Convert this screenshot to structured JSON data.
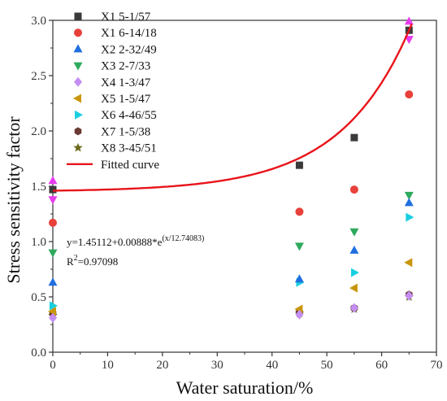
{
  "chart_data": {
    "type": "scatter",
    "xlabel": "Water saturation/%",
    "ylabel": "Stress sensitivity factor",
    "xlim": [
      0,
      70
    ],
    "ylim": [
      0.0,
      3.0
    ],
    "x_ticks": [
      "0",
      "10",
      "20",
      "30",
      "40",
      "50",
      "60",
      "70"
    ],
    "y_ticks": [
      "0.0",
      "0.5",
      "1.0",
      "1.5",
      "2.0",
      "2.5",
      "3.0"
    ],
    "legend_position": "top-left",
    "series": [
      {
        "name": "X1 5-1/57",
        "marker": "square",
        "color": "#3a3a3a",
        "x": [
          0,
          45,
          55,
          65
        ],
        "y": [
          1.47,
          1.69,
          1.94,
          2.91
        ]
      },
      {
        "name": "X1 6-14/18",
        "marker": "circle",
        "color": "#e8403a",
        "x": [
          0,
          45,
          55,
          65
        ],
        "y": [
          1.17,
          1.27,
          1.47,
          2.33
        ]
      },
      {
        "name": "X2 2-32/49",
        "marker": "triangle-up",
        "color": "#1f6fe0",
        "x": [
          0,
          45,
          55,
          65
        ],
        "y": [
          0.63,
          0.66,
          0.92,
          1.35
        ]
      },
      {
        "name": "X3 2-7/33",
        "marker": "triangle-down",
        "color": "#2faa5e",
        "x": [
          0,
          45,
          55,
          65
        ],
        "y": [
          0.9,
          0.96,
          1.09,
          1.42
        ]
      },
      {
        "name": "X4 1-3/47",
        "marker": "diamond",
        "color": "#c58ef2",
        "x": [
          0,
          45,
          55,
          65
        ],
        "y": [
          0.31,
          0.34,
          0.4,
          0.51
        ]
      },
      {
        "name": "X5 1-5/47",
        "marker": "triangle-left",
        "color": "#c8960c",
        "x": [
          0,
          45,
          55,
          65
        ],
        "y": [
          0.37,
          0.39,
          0.58,
          0.81
        ]
      },
      {
        "name": "X6 4-46/55",
        "marker": "triangle-right",
        "color": "#18cfe0",
        "x": [
          0,
          45,
          55,
          65
        ],
        "y": [
          0.42,
          0.63,
          0.72,
          1.22
        ]
      },
      {
        "name": "X7 1-5/38",
        "marker": "hexagon",
        "color": "#6b3a32",
        "x": [
          0,
          45,
          55,
          65
        ],
        "y": [
          0.35,
          0.36,
          0.4,
          0.52
        ]
      },
      {
        "name": "X8 3-45/51",
        "marker": "star",
        "color": "#6b6a1e",
        "x": [
          0,
          45,
          55,
          65
        ],
        "y": [
          0.33,
          0.35,
          0.39,
          0.5
        ]
      }
    ],
    "extra_markers": [
      {
        "shape": "triangle-down",
        "color": "#e83cf0",
        "x": 0,
        "y": 1.38
      },
      {
        "shape": "triangle-up",
        "color": "#e83cf0",
        "x": 0,
        "y": 1.55
      },
      {
        "shape": "triangle-down",
        "color": "#e83cf0",
        "x": 65,
        "y": 2.83
      },
      {
        "shape": "triangle-up",
        "color": "#e83cf0",
        "x": 65,
        "y": 2.99
      }
    ],
    "fit": {
      "name": "Fitted curve",
      "color": "#e8141a",
      "y0": 1.45112,
      "A": 0.00888,
      "t": 12.74083,
      "equation_text": "y=1.45112+0.00888*e",
      "equation_exponent": "(x/12.74083)",
      "r2_text": "R",
      "r2_exponent": "2",
      "r2_value": "=0.97098"
    }
  }
}
